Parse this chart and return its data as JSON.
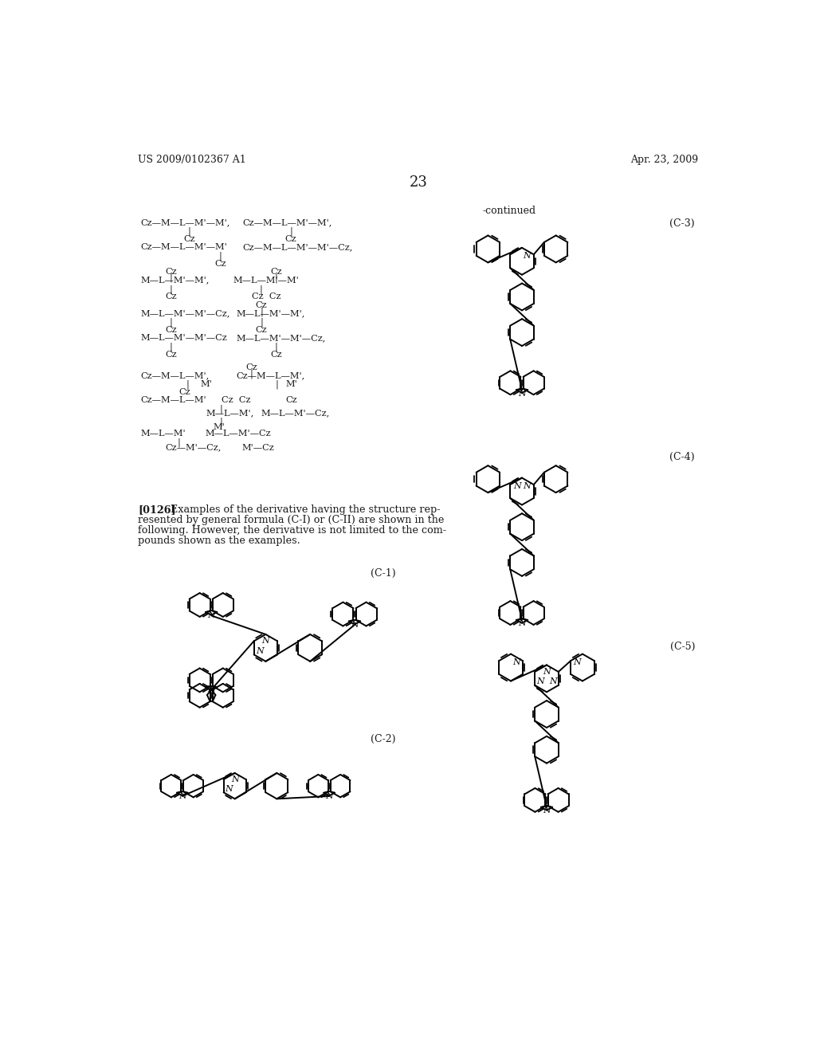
{
  "bg": "#ffffff",
  "tc": "#1a1a1a",
  "lh": "US 2009/0102367 A1",
  "rh": "Apr. 23, 2009",
  "pn": "23",
  "cont": "-continued",
  "para_lines": [
    "[0126]   Examples of the derivative having the structure rep-",
    "resented by general formula (C-I) or (C-II) are shown in the",
    "following. However, the derivative is not limited to the com-",
    "pounds shown as the examples."
  ]
}
